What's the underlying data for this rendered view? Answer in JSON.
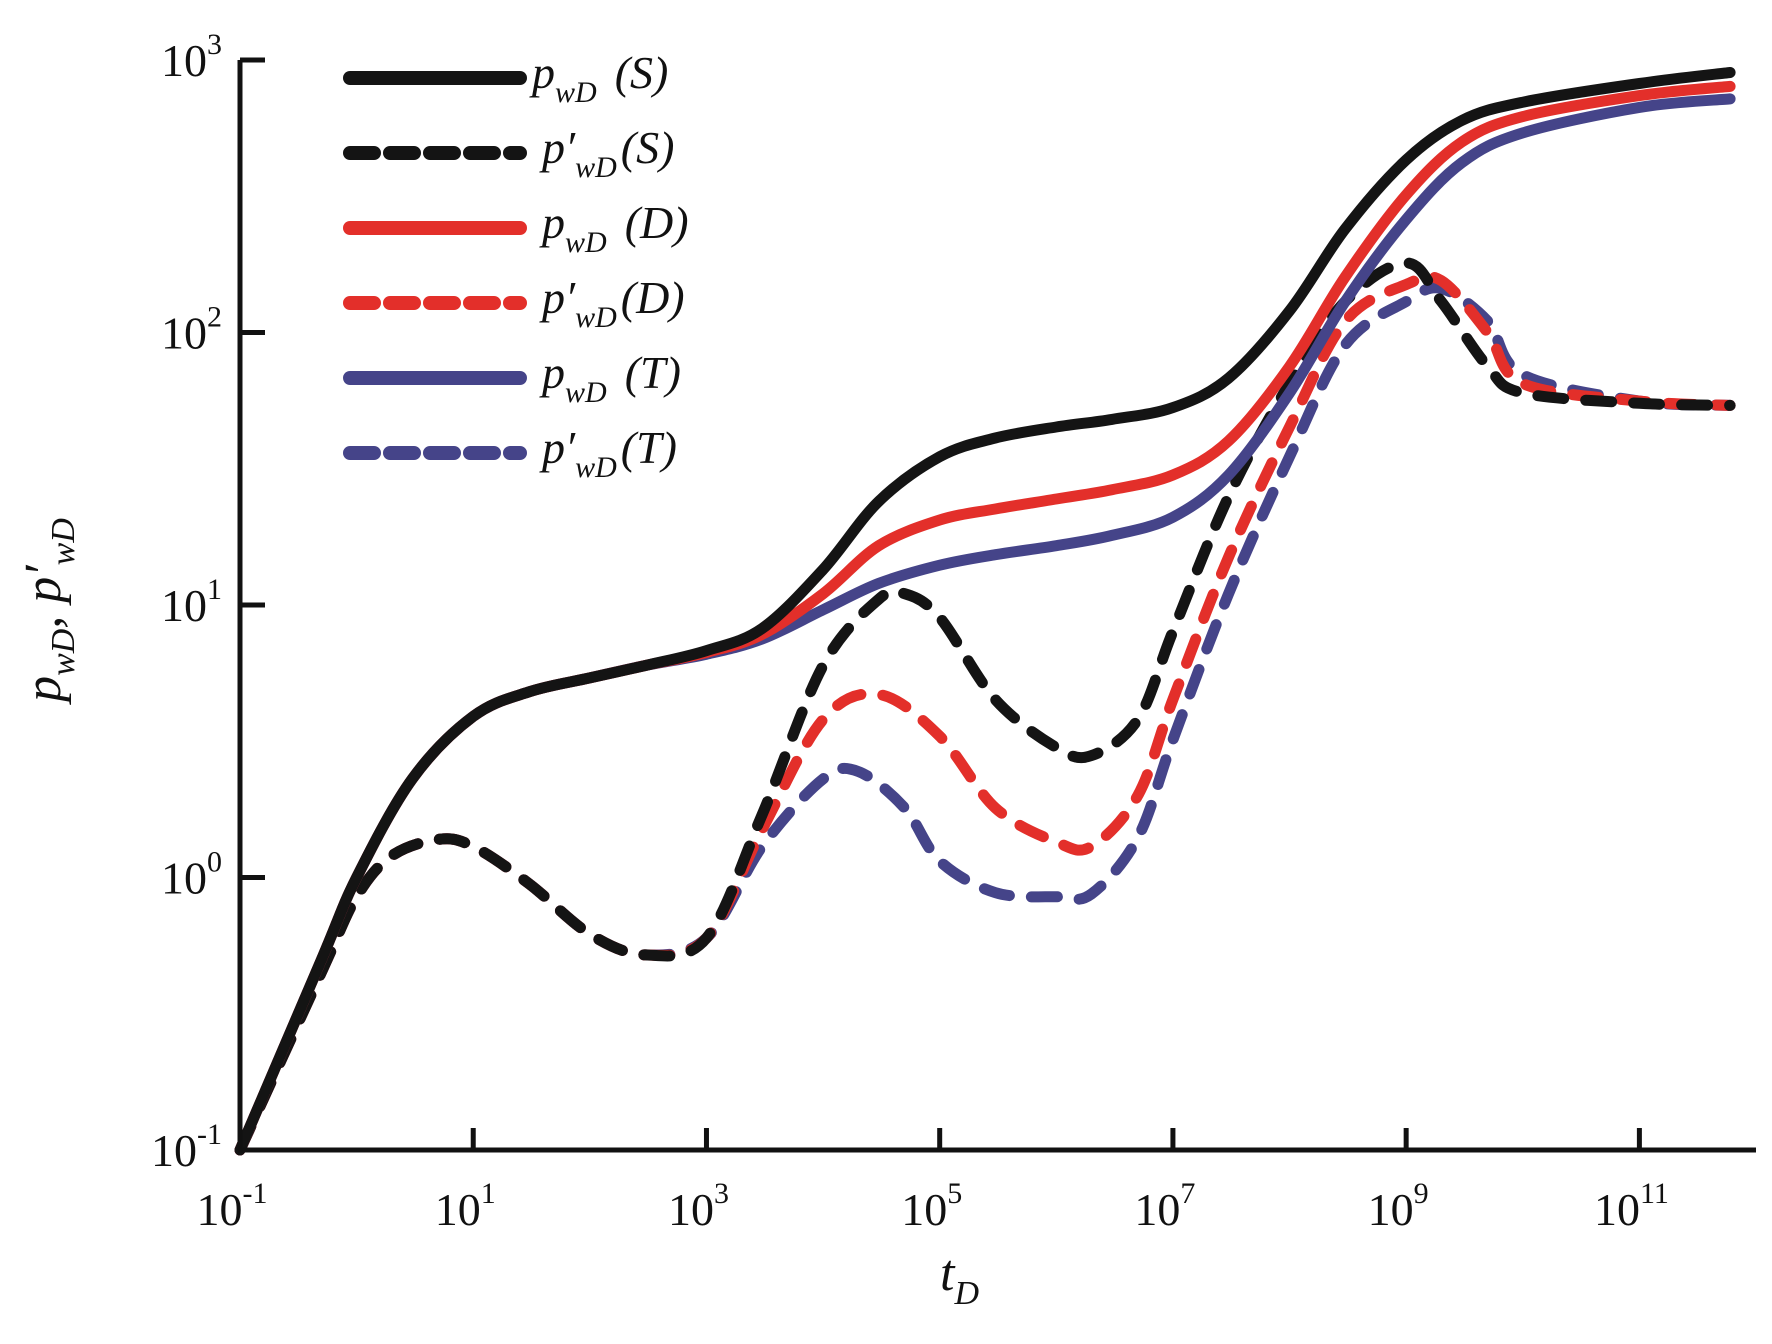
{
  "chart_data": {
    "type": "line",
    "title": "",
    "xlabel": "t_D",
    "ylabel": "p_wD, p'_wD",
    "xscale": "log",
    "yscale": "log",
    "xlim": [
      0.1,
      1000000000000.0
    ],
    "ylim": [
      0.1,
      1000
    ],
    "grid": false,
    "legend_position": "top-left",
    "x_ticks": [
      {
        "base": "10",
        "exp": "-1",
        "value": 0.1
      },
      {
        "base": "10",
        "exp": "1",
        "value": 10
      },
      {
        "base": "10",
        "exp": "3",
        "value": 1000
      },
      {
        "base": "10",
        "exp": "5",
        "value": 100000
      },
      {
        "base": "10",
        "exp": "7",
        "value": 10000000
      },
      {
        "base": "10",
        "exp": "9",
        "value": 1000000000
      },
      {
        "base": "10",
        "exp": "11",
        "value": 100000000000
      }
    ],
    "y_ticks": [
      {
        "base": "10",
        "exp": "-1",
        "value": 0.1
      },
      {
        "base": "10",
        "exp": "0",
        "value": 1
      },
      {
        "base": "10",
        "exp": "1",
        "value": 10
      },
      {
        "base": "10",
        "exp": "2",
        "value": 100
      },
      {
        "base": "10",
        "exp": "3",
        "value": 1000
      }
    ],
    "series": [
      {
        "name": "p_wD (S)",
        "label_main": "p",
        "label_sub": "wD",
        "prime": false,
        "label_case": "(S)",
        "color": "#141414",
        "style": "solid",
        "x": [
          0.1,
          0.5,
          1,
          3,
          10,
          30,
          100,
          300,
          1000,
          3000,
          10000,
          30000,
          100000,
          300000,
          1000000.0,
          3000000.0,
          10000000.0,
          30000000.0,
          100000000.0,
          300000000.0,
          1000000000.0,
          3000000000.0,
          10000000000.0,
          100000000000.0,
          600000000000.0
        ],
        "y": [
          0.1,
          0.5,
          1.0,
          2.3,
          3.9,
          4.8,
          5.4,
          6.0,
          6.8,
          8.2,
          13.5,
          24,
          35,
          41,
          45,
          48,
          53,
          68,
          120,
          240,
          430,
          600,
          700,
          820,
          900
        ]
      },
      {
        "name": "p'_wD (S)",
        "label_main": "p",
        "label_sub": "wD",
        "prime": true,
        "label_case": "(S)",
        "color": "#141414",
        "style": "dashed",
        "x": [
          0.1,
          0.5,
          1,
          2,
          5,
          10,
          30,
          100,
          300,
          1000,
          3000,
          10000,
          30000,
          50000,
          100000,
          300000,
          1000000.0,
          2000000.0,
          5000000.0,
          10000000.0,
          30000000.0,
          100000000.0,
          300000000.0,
          1000000000.0,
          2000000000.0,
          5000000000.0,
          10000000000.0,
          100000000000.0,
          600000000000.0
        ],
        "y": [
          0.1,
          0.45,
          0.85,
          1.2,
          1.38,
          1.3,
          0.95,
          0.62,
          0.52,
          0.6,
          1.7,
          6.0,
          10.5,
          11.0,
          9.0,
          4.5,
          3.0,
          2.8,
          3.8,
          8.0,
          25,
          65,
          130,
          180,
          130,
          75,
          60,
          55,
          54
        ]
      },
      {
        "name": "p_wD (D)",
        "label_main": "p",
        "label_sub": "wD",
        "prime": false,
        "label_case": "(D)",
        "color": "#e32f2a",
        "style": "solid",
        "x": [
          0.1,
          0.5,
          1,
          3,
          10,
          30,
          100,
          300,
          1000,
          3000,
          10000,
          30000,
          100000,
          300000,
          1000000.0,
          3000000.0,
          10000000.0,
          30000000.0,
          100000000.0,
          300000000.0,
          1000000000.0,
          3000000000.0,
          10000000000.0,
          100000000000.0,
          600000000000.0
        ],
        "y": [
          0.1,
          0.5,
          1.0,
          2.3,
          3.9,
          4.8,
          5.4,
          6.0,
          6.7,
          7.8,
          11.0,
          16.5,
          20.5,
          22.5,
          24.5,
          26.5,
          30,
          40,
          75,
          160,
          320,
          500,
          620,
          740,
          800
        ]
      },
      {
        "name": "p'_wD (D)",
        "label_main": "p",
        "label_sub": "wD",
        "prime": true,
        "label_case": "(D)",
        "color": "#e32f2a",
        "style": "dashed",
        "x": [
          0.1,
          0.5,
          1,
          2,
          5,
          10,
          30,
          100,
          300,
          1000,
          3000,
          10000,
          30000,
          100000,
          300000,
          1000000.0,
          2000000.0,
          5000000.0,
          10000000.0,
          30000000.0,
          100000000.0,
          300000000.0,
          1000000000.0,
          2000000000.0,
          5000000000.0,
          10000000000.0,
          100000000000.0,
          600000000000.0
        ],
        "y": [
          0.1,
          0.45,
          0.85,
          1.2,
          1.38,
          1.3,
          0.95,
          0.62,
          0.52,
          0.6,
          1.5,
          3.8,
          4.7,
          3.3,
          1.8,
          1.35,
          1.3,
          2.0,
          4.5,
          15,
          45,
          110,
          150,
          155,
          100,
          65,
          56,
          54
        ]
      },
      {
        "name": "p_wD (T)",
        "label_main": "p",
        "label_sub": "wD",
        "prime": false,
        "label_case": "(T)",
        "color": "#454489",
        "style": "solid",
        "x": [
          0.1,
          0.5,
          1,
          3,
          10,
          30,
          100,
          300,
          1000,
          3000,
          10000,
          30000,
          100000,
          300000,
          1000000.0,
          3000000.0,
          10000000.0,
          30000000.0,
          100000000.0,
          300000000.0,
          1000000000.0,
          3000000000.0,
          10000000000.0,
          100000000000.0,
          600000000000.0
        ],
        "y": [
          0.1,
          0.5,
          1.0,
          2.3,
          3.9,
          4.8,
          5.4,
          6.0,
          6.6,
          7.5,
          9.6,
          12.0,
          14.0,
          15.3,
          16.5,
          18.0,
          21,
          30,
          60,
          130,
          260,
          420,
          540,
          670,
          720
        ]
      },
      {
        "name": "p'_wD (T)",
        "label_main": "p",
        "label_sub": "wD",
        "prime": true,
        "label_case": "(T)",
        "color": "#454489",
        "style": "dashed",
        "x": [
          0.1,
          0.5,
          1,
          2,
          5,
          10,
          30,
          100,
          300,
          1000,
          3000,
          10000,
          20000,
          50000,
          100000,
          300000,
          1000000.0,
          2000000.0,
          5000000.0,
          10000000.0,
          30000000.0,
          100000000.0,
          300000000.0,
          1000000000.0,
          2000000000.0,
          5000000000.0,
          10000000000.0,
          100000000000.0,
          600000000000.0
        ],
        "y": [
          0.1,
          0.45,
          0.85,
          1.2,
          1.38,
          1.3,
          0.95,
          0.62,
          0.52,
          0.6,
          1.3,
          2.3,
          2.45,
          1.8,
          1.15,
          0.88,
          0.85,
          0.87,
          1.4,
          3.2,
          11,
          35,
          90,
          130,
          145,
          110,
          70,
          56,
          54
        ]
      }
    ]
  }
}
